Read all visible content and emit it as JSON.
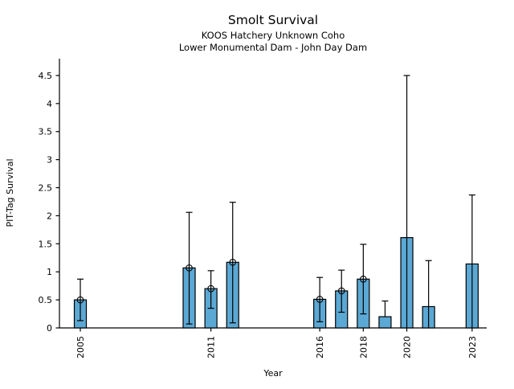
{
  "chart_data": {
    "type": "bar",
    "title": "Smolt Survival",
    "subtitle1": "KOOS Hatchery Unknown Coho",
    "subtitle2": "Lower Monumental Dam - John Day Dam",
    "xlabel": "Year",
    "ylabel": "PIT-Tag Survival",
    "x_tick_years": [
      2005,
      2011,
      2016,
      2018,
      2020,
      2023
    ],
    "y_ticks": [
      0,
      0.5,
      1,
      1.5,
      2,
      2.5,
      3,
      3.5,
      4,
      4.5
    ],
    "xlim": [
      2004.04,
      2023.67
    ],
    "ylim": [
      0,
      4.8
    ],
    "grid": false,
    "legend": "none",
    "bar_color": "#5BA8D4",
    "bar_edge_color": "#000000",
    "error_bar_color": "#000000",
    "bars": [
      {
        "year": 2005,
        "value": 0.5,
        "err_lo": 0.13,
        "err_hi": 0.87,
        "cap_lo": true,
        "cap_hi": true,
        "marker": true
      },
      {
        "year": 2010,
        "value": 1.07,
        "err_lo": 0.07,
        "err_hi": 2.06,
        "cap_lo": true,
        "cap_hi": true,
        "marker": true
      },
      {
        "year": 2011,
        "value": 0.7,
        "err_lo": 0.35,
        "err_hi": 1.02,
        "cap_lo": true,
        "cap_hi": true,
        "marker": true
      },
      {
        "year": 2012,
        "value": 1.17,
        "err_lo": 0.09,
        "err_hi": 2.24,
        "cap_lo": true,
        "cap_hi": true,
        "marker": true
      },
      {
        "year": 2016,
        "value": 0.51,
        "err_lo": 0.11,
        "err_hi": 0.9,
        "cap_lo": true,
        "cap_hi": true,
        "marker": true
      },
      {
        "year": 2017,
        "value": 0.66,
        "err_lo": 0.28,
        "err_hi": 1.03,
        "cap_lo": true,
        "cap_hi": true,
        "marker": true
      },
      {
        "year": 2018,
        "value": 0.87,
        "err_lo": 0.25,
        "err_hi": 1.49,
        "cap_lo": true,
        "cap_hi": true,
        "marker": true
      },
      {
        "year": 2019,
        "value": 0.2,
        "err_lo": 0.2,
        "err_hi": 0.48,
        "cap_lo": false,
        "cap_hi": true,
        "marker": false
      },
      {
        "year": 2020,
        "value": 1.61,
        "err_lo": 0.0,
        "err_hi": 4.5,
        "cap_lo": false,
        "cap_hi": true,
        "marker": false
      },
      {
        "year": 2021,
        "value": 0.38,
        "err_lo": 0.0,
        "err_hi": 1.2,
        "cap_lo": false,
        "cap_hi": true,
        "marker": false
      },
      {
        "year": 2023,
        "value": 1.14,
        "err_lo": 0.0,
        "err_hi": 2.37,
        "cap_lo": false,
        "cap_hi": true,
        "marker": false
      }
    ]
  }
}
